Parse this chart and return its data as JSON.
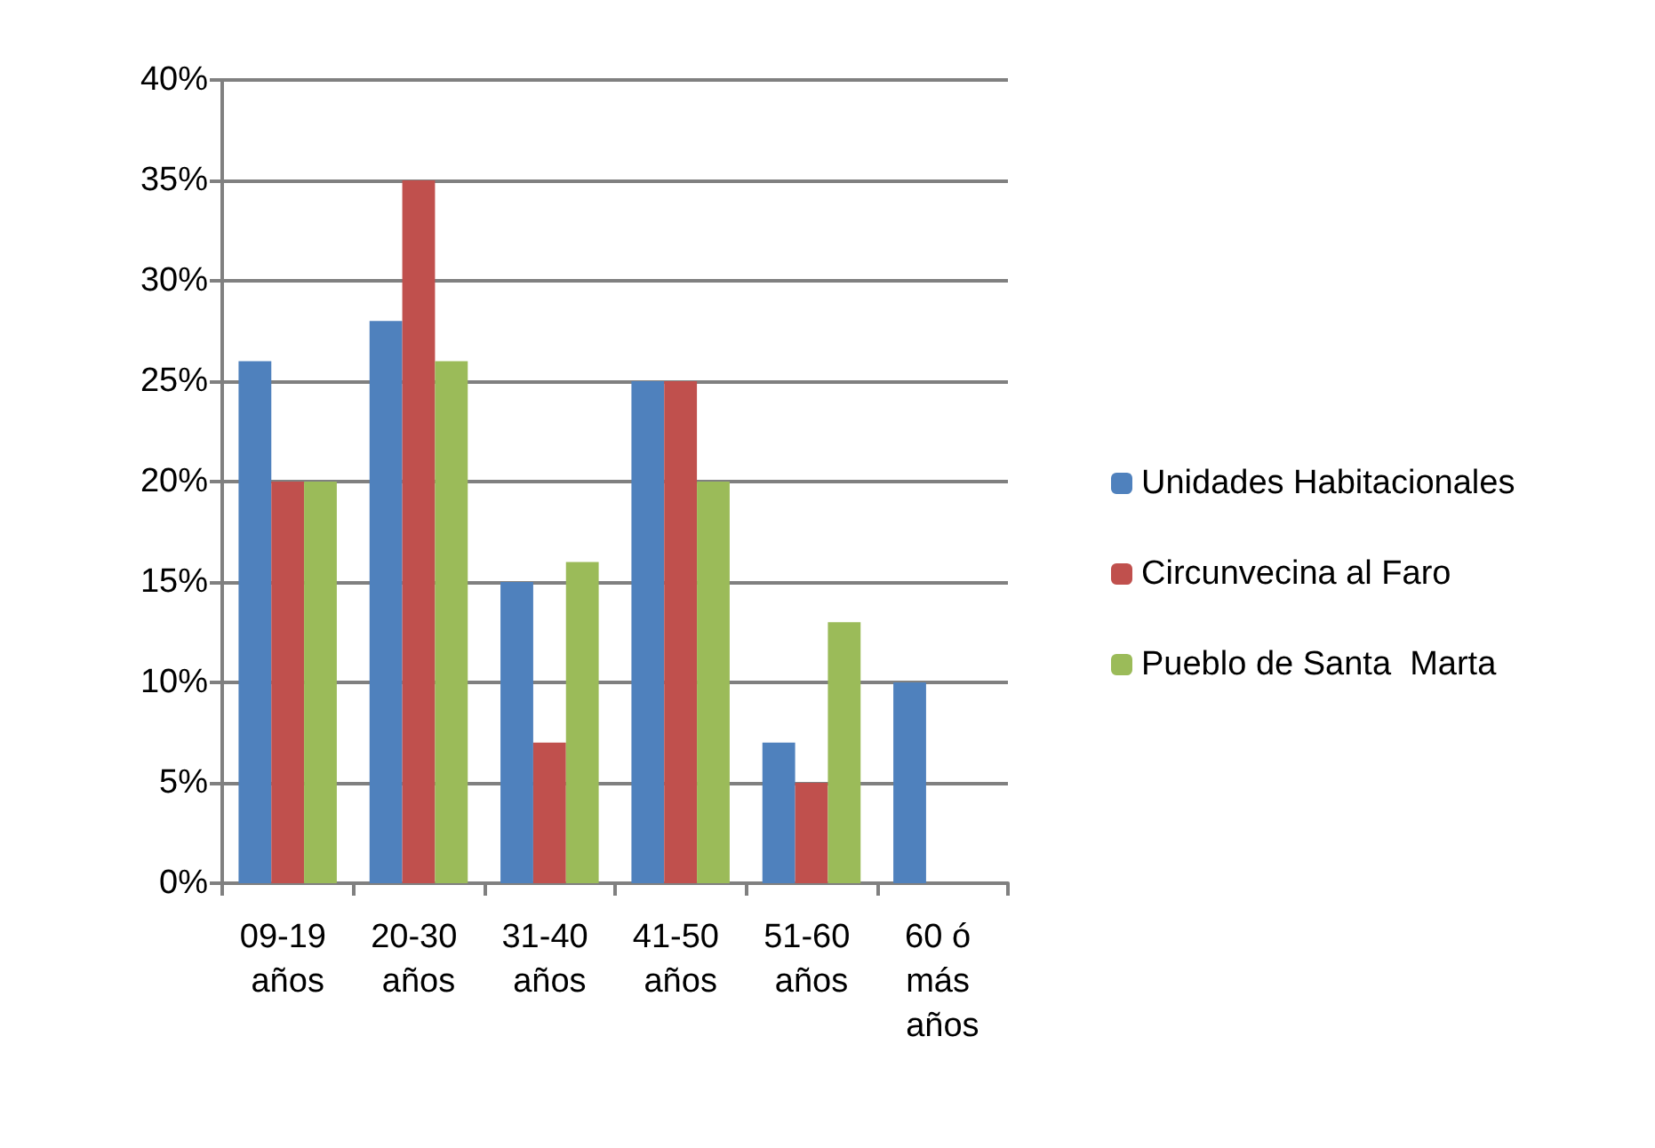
{
  "chart_data": {
    "type": "bar",
    "categories": [
      "09-19 años",
      "20-30 años",
      "31-40 años",
      "41-50 años",
      "51-60 años",
      "60 ó más años"
    ],
    "series": [
      {
        "name": "Unidades Habitacionales",
        "color": "#4f81bd",
        "values": [
          26,
          28,
          15,
          25,
          7,
          10
        ]
      },
      {
        "name": "Circunvecina al Faro",
        "color": "#c0504d",
        "values": [
          20,
          35,
          7,
          25,
          5,
          0
        ]
      },
      {
        "name": "Pueblo de Santa  Marta",
        "color": "#9bbb59",
        "values": [
          20,
          26,
          16,
          20,
          13,
          0
        ]
      }
    ],
    "ylim": [
      0,
      40
    ],
    "yticks": [
      {
        "value": 0,
        "label": "0%"
      },
      {
        "value": 5,
        "label": "5%"
      },
      {
        "value": 10,
        "label": "10%"
      },
      {
        "value": 15,
        "label": "15%"
      },
      {
        "value": 20,
        "label": "20%"
      },
      {
        "value": 25,
        "label": "25%"
      },
      {
        "value": 30,
        "label": "30%"
      },
      {
        "value": 35,
        "label": "35%"
      },
      {
        "value": 40,
        "label": "40%"
      }
    ],
    "grid": "y",
    "legend": "right"
  }
}
